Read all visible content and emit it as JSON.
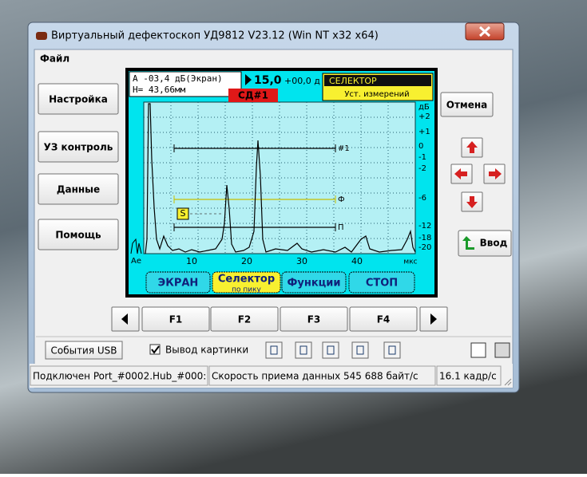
{
  "window": {
    "title": "Виртуальный дефектоскоп УД9812 V23.12 (Win NT x32 x64)"
  },
  "menu": [
    "Файл"
  ],
  "left_buttons": [
    "Настройка",
    "УЗ контроль",
    "Данные",
    "Помощь"
  ],
  "screen": {
    "info": [
      "А -03,4 дБ(Экран)",
      "Н= 43,66мм"
    ],
    "gain": "15,0",
    "gain_offset": "+00,0 д",
    "selector": "СЕЛЕКТОР",
    "selector_sub": "Уст. измерений",
    "channel": "СД#1",
    "db_unit": "дБ",
    "db_ticks": [
      "+2",
      "+1",
      "0",
      "-1",
      "-2",
      "-6",
      "-12",
      "-18",
      "-20"
    ],
    "x_label": "Ае",
    "x_ticks": [
      "10",
      "20",
      "30",
      "40"
    ],
    "x_unit": "мкс",
    "gates": [
      "#1",
      "Ф",
      "П"
    ],
    "strobe": "S",
    "softkeys": [
      {
        "label": "ЭКРАН"
      },
      {
        "label": "Селектор",
        "sub": "по пику"
      },
      {
        "label": "Функции"
      },
      {
        "label": "СТОП"
      }
    ]
  },
  "right": {
    "cancel": "Отмена",
    "enter": "Ввод"
  },
  "function_keys": [
    "F1",
    "F2",
    "F3",
    "F4"
  ],
  "toolbar": {
    "usb": "События USB",
    "checkbox": "Вывод картинки"
  },
  "status": [
    "Подключен Port_#0002.Hub_#000:",
    "Скорость приема данных 545 688 байт/с",
    "16.1 кадр/с"
  ]
}
